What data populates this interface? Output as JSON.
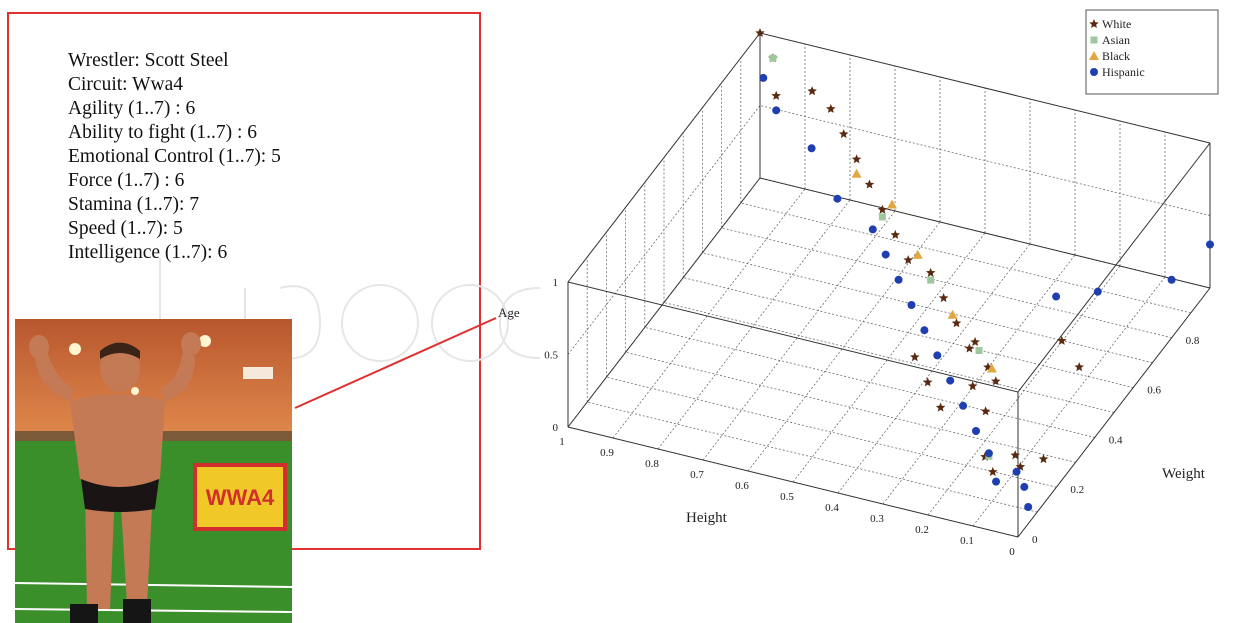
{
  "profile": {
    "lines": [
      "Wrestler: Scott Steel",
      "Circuit: Wwa4",
      "Agility (1..7) : 6",
      "Ability to fight (1..7) : 6",
      "Emotional Control (1..7): 5",
      "Force (1..7) : 6",
      "Stamina (1..7): 7",
      "Speed (1..7): 5",
      "Intelligence (1..7): 6"
    ],
    "photo_sign_text": "WWA4"
  },
  "colors": {
    "box_border": "#e03030",
    "grid": "#5a5a5a",
    "White": "#5a2a10",
    "Asian": "#9ec79b",
    "Black": "#e0a840",
    "Hispanic": "#1f3fb0"
  },
  "chart_data": {
    "type": "scatter",
    "dimensions": 3,
    "xlabel": "Height",
    "ylabel": "Weight",
    "zlabel": "Age",
    "xlim": [
      0,
      1
    ],
    "ylim": [
      0,
      1
    ],
    "zlim": [
      0,
      1
    ],
    "x_ticks": [
      "1",
      "0.9",
      "0.8",
      "0.7",
      "0.6",
      "0.5",
      "0.4",
      "0.3",
      "0.2",
      "0.1",
      "0"
    ],
    "y_ticks": [
      "0",
      "0.2",
      "0.4",
      "0.6",
      "0.8"
    ],
    "z_ticks": [
      "0",
      "0.5",
      "1"
    ],
    "legend_position": "top-right",
    "series": [
      {
        "name": "White",
        "marker": "star",
        "points": [
          [
            0.05,
            0.25,
            0.07
          ],
          [
            0.08,
            0.2,
            0.08
          ],
          [
            0.12,
            0.15,
            0.1
          ],
          [
            0.1,
            0.22,
            0.11
          ],
          [
            0.15,
            0.18,
            0.13
          ],
          [
            0.2,
            0.3,
            0.2
          ],
          [
            0.25,
            0.35,
            0.25
          ],
          [
            0.22,
            0.4,
            0.22
          ],
          [
            0.3,
            0.45,
            0.3
          ],
          [
            0.35,
            0.5,
            0.35
          ],
          [
            0.4,
            0.55,
            0.4
          ],
          [
            0.45,
            0.6,
            0.45
          ],
          [
            0.5,
            0.6,
            0.5
          ],
          [
            0.55,
            0.65,
            0.55
          ],
          [
            0.6,
            0.7,
            0.6
          ],
          [
            0.65,
            0.75,
            0.65
          ],
          [
            0.7,
            0.8,
            0.7
          ],
          [
            0.75,
            0.85,
            0.75
          ],
          [
            0.8,
            0.9,
            0.8
          ],
          [
            0.85,
            0.92,
            0.85
          ],
          [
            0.3,
            0.3,
            0.15
          ],
          [
            0.35,
            0.35,
            0.2
          ],
          [
            0.4,
            0.4,
            0.25
          ],
          [
            0.28,
            0.5,
            0.1
          ],
          [
            0.33,
            0.55,
            0.15
          ],
          [
            0.12,
            0.6,
            0.05
          ],
          [
            0.18,
            0.65,
            0.1
          ],
          [
            0.9,
            0.85,
            0.9
          ],
          [
            0.95,
            0.95,
            0.95
          ],
          [
            1.0,
            1.0,
            1.0
          ]
        ]
      },
      {
        "name": "Asian",
        "marker": "square",
        "points": [
          [
            0.15,
            0.2,
            0.1
          ],
          [
            0.3,
            0.5,
            0.2
          ],
          [
            0.45,
            0.6,
            0.4
          ],
          [
            0.6,
            0.7,
            0.55
          ],
          [
            0.95,
            0.95,
            0.95
          ]
        ]
      },
      {
        "name": "Black",
        "marker": "triangle",
        "points": [
          [
            0.25,
            0.45,
            0.2
          ],
          [
            0.38,
            0.55,
            0.3
          ],
          [
            0.5,
            0.65,
            0.45
          ],
          [
            0.6,
            0.75,
            0.55
          ],
          [
            0.7,
            0.8,
            0.6
          ]
        ]
      },
      {
        "name": "Hispanic",
        "marker": "circle",
        "points": [
          [
            0.02,
            0.1,
            0.02
          ],
          [
            0.05,
            0.15,
            0.05
          ],
          [
            0.08,
            0.18,
            0.08
          ],
          [
            0.1,
            0.12,
            0.1
          ],
          [
            0.15,
            0.2,
            0.12
          ],
          [
            0.2,
            0.25,
            0.15
          ],
          [
            0.25,
            0.3,
            0.2
          ],
          [
            0.3,
            0.35,
            0.25
          ],
          [
            0.35,
            0.4,
            0.3
          ],
          [
            0.4,
            0.45,
            0.35
          ],
          [
            0.45,
            0.5,
            0.4
          ],
          [
            0.5,
            0.55,
            0.45
          ],
          [
            0.55,
            0.6,
            0.5
          ],
          [
            0.6,
            0.65,
            0.55
          ],
          [
            0.7,
            0.7,
            0.6
          ],
          [
            0.8,
            0.8,
            0.7
          ],
          [
            0.9,
            0.85,
            0.8
          ],
          [
            0.95,
            0.9,
            0.9
          ],
          [
            0.0,
            1.0,
            0.3
          ],
          [
            0.0,
            0.8,
            0.4
          ],
          [
            0.1,
            0.65,
            0.5
          ],
          [
            0.15,
            0.55,
            0.6
          ]
        ]
      }
    ]
  }
}
